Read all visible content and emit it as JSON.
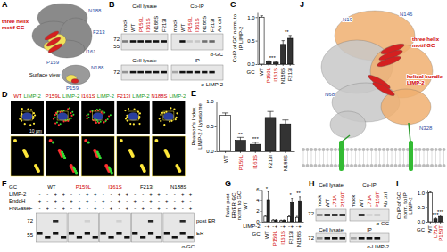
{
  "panel_letters": [
    "A",
    "B",
    "C",
    "D",
    "E",
    "F",
    "G",
    "H",
    "I",
    "J"
  ],
  "panel_a": {
    "labels": [
      "N188",
      "F213",
      "I161",
      "P159",
      "three helix motif GC",
      "Surface view",
      "N188",
      "P159"
    ]
  },
  "panel_b": {
    "headers": [
      "Cell lysate",
      "Co-IP",
      "Cell lysate",
      "IP"
    ],
    "lanes": [
      "mock",
      "WT",
      "P159L",
      "I161S",
      "N188S",
      "F213I"
    ],
    "extra_lane": "Ab ctrl",
    "markers": [
      72,
      55,
      72
    ],
    "antibodies": [
      "α-GC",
      "α-LIMP-2"
    ]
  },
  "panel_d": {
    "columns": [
      "WT",
      "P159L",
      "I161S",
      "F213I",
      "N188S"
    ],
    "channel": "LIMP-2",
    "scale_bar": "10 µm"
  },
  "panel_f": {
    "row_labels": [
      "GC",
      "LIMP-2",
      "EndoH",
      "PNGaseF"
    ],
    "groups": [
      "WT",
      "P159L",
      "I161S",
      "F213I",
      "N188S"
    ],
    "lane_signs": [
      [
        "-",
        "-",
        "+",
        "+"
      ],
      [
        "+",
        "-",
        "+",
        "-"
      ],
      [
        "-",
        "+",
        "-",
        "+"
      ]
    ],
    "markers": [
      72,
      55
    ],
    "bands": [
      "post ER",
      "ER"
    ],
    "antibody": "α-GC"
  },
  "panel_h": {
    "headers": [
      "Cell lysate",
      "Co-IP",
      "Cell lysate",
      "IP"
    ],
    "lanes": [
      "mock",
      "WT",
      "L71A",
      "P159T"
    ],
    "extra_lane": "Ab ctrl",
    "markers": [
      72,
      72
    ],
    "antibodies": [
      "α-GC",
      "α-LIMP-2"
    ]
  },
  "panel_j": {
    "labels": [
      "N19",
      "N146",
      "three helix motif GC",
      "helical bundle LIMP-2",
      "N68",
      "N328"
    ]
  },
  "chart_data": [
    {
      "type": "bar",
      "y_label": "CoIP of GC norm. to IP LIMP-2",
      "x_label": "GC",
      "categories": [
        "WT",
        "P159L",
        "I161S",
        "N188S",
        "F213I"
      ],
      "values": [
        1.0,
        0.05,
        0.04,
        0.42,
        0.55
      ],
      "errors": [
        0.03,
        0.02,
        0.02,
        0.08,
        0.06
      ],
      "colors": [
        "#ffffff",
        "#333333",
        "#333333",
        "#333333",
        "#333333"
      ],
      "ylim": [
        0,
        1.1
      ],
      "yticks": [
        {
          "value": 0,
          "label": "0.0"
        },
        0.5,
        {
          "value": 1,
          "label": "1.0"
        }
      ],
      "annotations": [
        {
          "text": "***",
          "categories": [
            1,
            2
          ]
        },
        {
          "text": "**",
          "categories": [
            3,
            4
          ]
        }
      ]
    },
    {
      "type": "bar",
      "y_label": "Pearson's Index LIMP-2 / Lysosome",
      "categories": [
        "WT",
        "P159L",
        "I161S",
        "F213I",
        "N188S"
      ],
      "values": [
        0.72,
        0.22,
        0.14,
        0.68,
        0.55
      ],
      "errors": [
        0.05,
        0.06,
        0.04,
        0.12,
        0.08
      ],
      "colors": [
        "#ffffff",
        "#333333",
        "#333333",
        "#333333",
        "#333333"
      ],
      "ylim": [
        0,
        1.0
      ],
      "yticks": [
        {
          "value": 0,
          "label": "0.0"
        },
        0.5,
        {
          "value": 1,
          "label": "1.0"
        }
      ],
      "annotations": [
        {
          "text": "**",
          "categories": [
            1
          ]
        },
        {
          "text": "***",
          "categories": [
            2
          ]
        }
      ]
    },
    {
      "type": "bar",
      "y_label": "Ratio post ER/ER GC norm. to GC WT",
      "x_label": "GC",
      "series_title": "LIMP-2",
      "categories": [
        "WT",
        "P159L",
        "I161S",
        "F213I",
        "N188S"
      ],
      "series": [
        {
          "name": "-",
          "color": "#ffffff",
          "values": [
            1.0,
            0.3,
            0.2,
            0.9,
            0.8
          ],
          "errors": [
            0.05,
            0.1,
            0.1,
            0.2,
            0.2
          ]
        },
        {
          "name": "+",
          "color": "#222222",
          "values": [
            4.0,
            0.3,
            0.25,
            3.6,
            3.8
          ],
          "errors": [
            1.6,
            0.1,
            0.1,
            0.8,
            0.9
          ]
        }
      ],
      "ylim": [
        0,
        6
      ],
      "yticks": [
        0,
        2,
        4,
        6
      ],
      "annotations": [
        {
          "text": "*",
          "categories": [
            0
          ]
        },
        {
          "text": "*",
          "categories": [
            3
          ]
        },
        {
          "text": "**",
          "categories": [
            4
          ]
        }
      ]
    },
    {
      "type": "bar",
      "y_label": "CoIP of GC norm. to IP LIMP-2",
      "x_label": "GC",
      "categories": [
        "WT",
        "L71A",
        "P159T"
      ],
      "values": [
        1.0,
        0.1,
        0.18
      ],
      "errors": [
        0.02,
        0.03,
        0.05
      ],
      "colors": [
        "#ffffff",
        "#333333",
        "#333333"
      ],
      "ylim": [
        0,
        1.1
      ],
      "yticks": [
        {
          "value": 0,
          "label": "0.0"
        },
        0.5,
        {
          "value": 1,
          "label": "1.0"
        }
      ],
      "annotations": [
        {
          "text": "***",
          "categories": [
            1
          ]
        },
        {
          "text": "***",
          "categories": [
            2
          ]
        }
      ]
    }
  ]
}
